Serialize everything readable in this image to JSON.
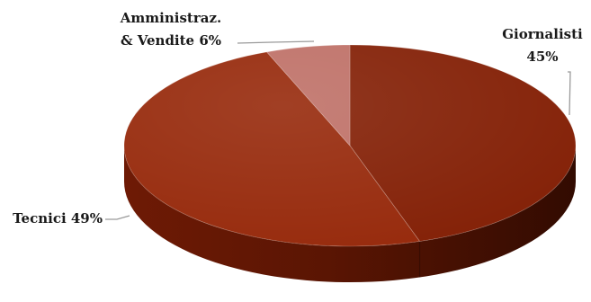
{
  "chart_data": {
    "type": "pie",
    "style": "3d",
    "legend": "none",
    "title": "",
    "slices": [
      {
        "lines": [
          "Giornalisti",
          "45%"
        ],
        "value": 45,
        "color": "#842107"
      },
      {
        "lines": [
          "Tecnici 49%"
        ],
        "value": 49,
        "color": "#972a0c"
      },
      {
        "lines": [
          "Amministraz.",
          "& Vendite 6%"
        ],
        "value": 6,
        "color": "#bf7168"
      }
    ]
  }
}
